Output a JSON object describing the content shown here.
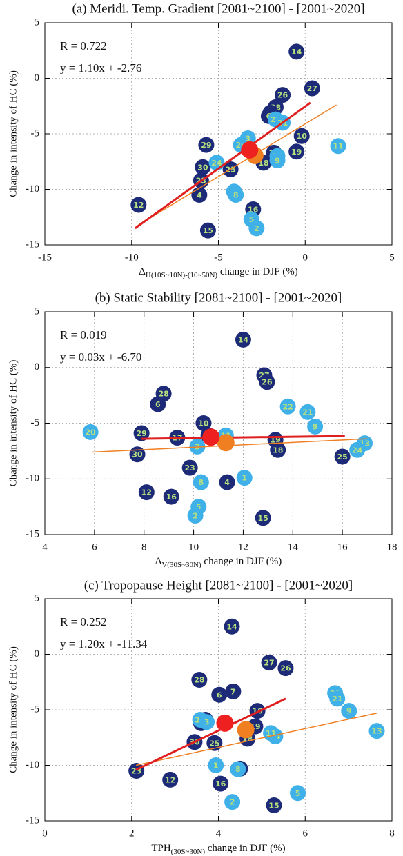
{
  "chart_data": [
    {
      "type": "scatter",
      "title": "(a) Meridi. Temp. Gradient [2081~2100] - [2001~2020]",
      "xlabel_main": "Δ",
      "xlabel_sub": "H(10S~10N)-(10~50N)",
      "xlabel_rest": " change in DJF (%)",
      "ylabel": "Change in intensity of HC (%)",
      "annotations": [
        "R = 0.722",
        "y = 1.10x + -2.76"
      ],
      "xlim": [
        -15,
        5
      ],
      "ylim": [
        -15,
        5
      ],
      "xticks": [
        -15,
        -10,
        -5,
        0,
        5
      ],
      "yticks": [
        -15,
        -10,
        -5,
        0,
        5
      ],
      "grid": true,
      "label_color": "#b4e07e",
      "series": [
        {
          "color": "#1c2a78",
          "point_labels": [
            "14",
            "27",
            "26",
            "28",
            "7",
            "6",
            "10",
            "19",
            "17",
            "18",
            "29",
            "25",
            "30",
            "23",
            "4",
            "12",
            "16",
            "15"
          ],
          "x": [
            -0.5,
            0.4,
            -1.3,
            -1.7,
            -2.0,
            -2.1,
            -0.2,
            -0.5,
            -1.8,
            -2.4,
            -5.7,
            -4.3,
            -5.9,
            -6.0,
            -6.1,
            -9.6,
            -3.0,
            -5.6
          ],
          "values": [
            2.4,
            -0.9,
            -1.5,
            -2.6,
            -3.1,
            -3.4,
            -5.2,
            -6.6,
            -6.7,
            -7.6,
            -6.0,
            -8.2,
            -8.0,
            -9.2,
            -10.5,
            -11.4,
            -11.8,
            -13.7
          ]
        },
        {
          "color": "#3fb0e8",
          "point_labels": [
            "22",
            "21",
            "11",
            "13",
            "9",
            "24",
            "20",
            "3",
            "1",
            "8",
            "5",
            "2"
          ],
          "x": [
            -1.7,
            -1.3,
            1.9,
            -1.6,
            -1.6,
            -5.1,
            -3.7,
            -3.3,
            -4.1,
            -4.0,
            -3.1,
            -2.8
          ],
          "values": [
            -3.7,
            -4.0,
            -6.1,
            -7.0,
            -7.4,
            -7.6,
            -6.0,
            -5.4,
            -10.2,
            -10.5,
            -12.7,
            -13.5
          ]
        },
        {
          "color": "#f07f22",
          "x": [
            -2.9
          ],
          "values": [
            -6.95
          ]
        },
        {
          "color": "#ee2020",
          "x": [
            -3.2
          ],
          "values": [
            -6.45
          ]
        }
      ],
      "lines": [
        {
          "color": "#f07f22",
          "x": [
            -9.7,
            1.8
          ],
          "values": [
            -13.3,
            -2.4
          ]
        },
        {
          "color": "#e02020",
          "x": [
            -9.8,
            0.3
          ],
          "values": [
            -13.5,
            -2.2
          ]
        }
      ]
    },
    {
      "type": "scatter",
      "title": "(b) Static Stability [2081~2100] - [2001~2020]",
      "xlabel_main": "Δ",
      "xlabel_sub": "V(30S~30N)",
      "xlabel_rest": " change in DJF (%)",
      "ylabel": "Change in intensity of HC (%)",
      "annotations": [
        "R = 0.019",
        "y = 0.03x + -6.70"
      ],
      "xlim": [
        4,
        18
      ],
      "ylim": [
        -15,
        5
      ],
      "xticks": [
        4,
        6,
        8,
        10,
        12,
        14,
        16,
        18
      ],
      "yticks": [
        -15,
        -10,
        -5,
        0,
        5
      ],
      "grid": true,
      "label_color": "#b4e07e",
      "series": [
        {
          "color": "#1c2a78",
          "point_labels": [
            "14",
            "27",
            "26",
            "28",
            "6",
            "10",
            "29",
            "17",
            "7",
            "19",
            "18",
            "30",
            "25",
            "23",
            "4",
            "12",
            "16",
            "15"
          ],
          "x": [
            12.0,
            12.85,
            12.96,
            8.79,
            8.56,
            10.4,
            7.9,
            9.34,
            10.6,
            13.3,
            13.4,
            7.73,
            16.0,
            9.85,
            11.35,
            8.1,
            9.1,
            12.8
          ],
          "values": [
            2.5,
            -0.7,
            -1.3,
            -2.35,
            -3.3,
            -5.0,
            -5.9,
            -6.3,
            -6.1,
            -6.5,
            -7.4,
            -7.8,
            -8.0,
            -9.0,
            -10.3,
            -11.2,
            -11.6,
            -13.5
          ]
        },
        {
          "color": "#3fb0e8",
          "point_labels": [
            "22",
            "21",
            "9",
            "20",
            "11",
            "3",
            "13",
            "24",
            "8",
            "1",
            "5",
            "2"
          ],
          "x": [
            13.8,
            14.6,
            14.9,
            5.84,
            11.3,
            10.15,
            16.9,
            16.6,
            10.3,
            12.05,
            10.2,
            10.07
          ],
          "values": [
            -3.5,
            -4.0,
            -5.3,
            -5.8,
            -6.1,
            -7.1,
            -6.8,
            -7.4,
            -10.3,
            -9.9,
            -12.5,
            -13.3
          ]
        },
        {
          "color": "#f07f22",
          "x": [
            11.3
          ],
          "values": [
            -6.75
          ]
        },
        {
          "color": "#ee2020",
          "x": [
            10.7
          ],
          "values": [
            -6.25
          ]
        }
      ],
      "lines": [
        {
          "color": "#f07f22",
          "x": [
            5.9,
            17.0
          ],
          "values": [
            -7.6,
            -6.4
          ]
        },
        {
          "color": "#e02020",
          "x": [
            7.9,
            16.1
          ],
          "values": [
            -6.4,
            -6.15
          ]
        }
      ]
    },
    {
      "type": "scatter",
      "title": "(c) Tropopause Height [2081~2100] - [2001~2020]",
      "xlabel_main": "TPH",
      "xlabel_sub": "(30S~30N)",
      "xlabel_rest": " change in DJF (%)",
      "ylabel": "Change in intensity of HC (%)",
      "annotations": [
        "R = 0.252",
        "y = 1.20x + -11.34"
      ],
      "xlim": [
        0,
        8
      ],
      "ylim": [
        -15,
        5
      ],
      "xticks": [
        0,
        2,
        4,
        6,
        8
      ],
      "yticks": [
        -15,
        -10,
        -5,
        0,
        5
      ],
      "grid": true,
      "label_color": "#b4e07e",
      "series": [
        {
          "color": "#1c2a78",
          "point_labels": [
            "14",
            "27",
            "26",
            "28",
            "7",
            "6",
            "10",
            "29",
            "17",
            "19",
            "18",
            "30",
            "25",
            "23",
            "4",
            "12",
            "16",
            "15"
          ],
          "x": [
            4.31,
            5.17,
            5.55,
            3.56,
            4.34,
            4.02,
            4.9,
            3.7,
            3.6,
            4.85,
            4.67,
            3.45,
            3.91,
            2.11,
            4.5,
            2.89,
            4.05,
            5.28
          ],
          "values": [
            2.5,
            -0.75,
            -1.25,
            -2.3,
            -3.35,
            -3.65,
            -5.1,
            -5.9,
            -6.2,
            -6.5,
            -7.6,
            -7.9,
            -8.0,
            -10.5,
            -10.3,
            -11.3,
            -11.65,
            -13.6
          ]
        },
        {
          "color": "#3fb0e8",
          "point_labels": [
            "22",
            "21",
            "9",
            "13",
            "20",
            "3",
            "24",
            "11",
            "1",
            "8",
            "5",
            "2"
          ],
          "x": [
            6.69,
            6.74,
            7.01,
            7.65,
            3.58,
            3.73,
            5.31,
            5.21,
            3.94,
            4.45,
            5.83,
            4.32
          ],
          "values": [
            -3.5,
            -4.0,
            -5.1,
            -6.9,
            -5.9,
            -6.1,
            -7.4,
            -7.1,
            -10.0,
            -10.35,
            -12.5,
            -13.3
          ]
        },
        {
          "color": "#f07f22",
          "x": [
            4.63
          ],
          "values": [
            -6.8
          ]
        },
        {
          "color": "#ee2020",
          "x": [
            4.15
          ],
          "values": [
            -6.2
          ]
        }
      ],
      "lines": [
        {
          "color": "#f07f22",
          "x": [
            2.1,
            7.65
          ],
          "values": [
            -10.0,
            -5.3
          ]
        },
        {
          "color": "#e02020",
          "x": [
            2.1,
            5.55
          ],
          "values": [
            -10.4,
            -4.0
          ]
        }
      ]
    }
  ]
}
